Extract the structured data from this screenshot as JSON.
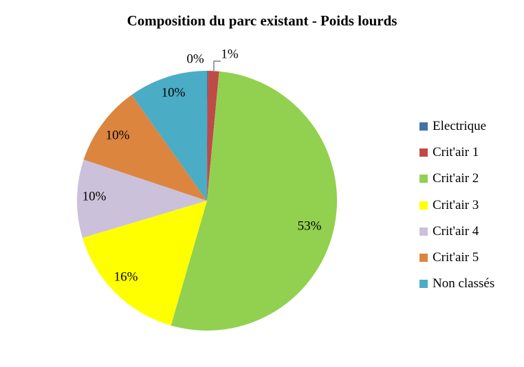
{
  "chart_data": {
    "type": "pie",
    "title": "Composition du parc existant - Poids lourds",
    "categories": [
      "Electrique",
      "Crit'air 1",
      "Crit'air 2",
      "Crit'air 3",
      "Crit'air 4",
      "Crit'air 5",
      "Non classés"
    ],
    "values": [
      0.1,
      1.4,
      53.3,
      16.0,
      9.8,
      10.1,
      9.9
    ],
    "data_labels": [
      "0%",
      "1%",
      "53%",
      "16%",
      "10%",
      "10%",
      "10%"
    ],
    "colors": [
      "#4472a8",
      "#be4b48",
      "#92d050",
      "#ffff00",
      "#ccc1da",
      "#dc853f",
      "#4bacc6"
    ],
    "legend_position": "right"
  }
}
